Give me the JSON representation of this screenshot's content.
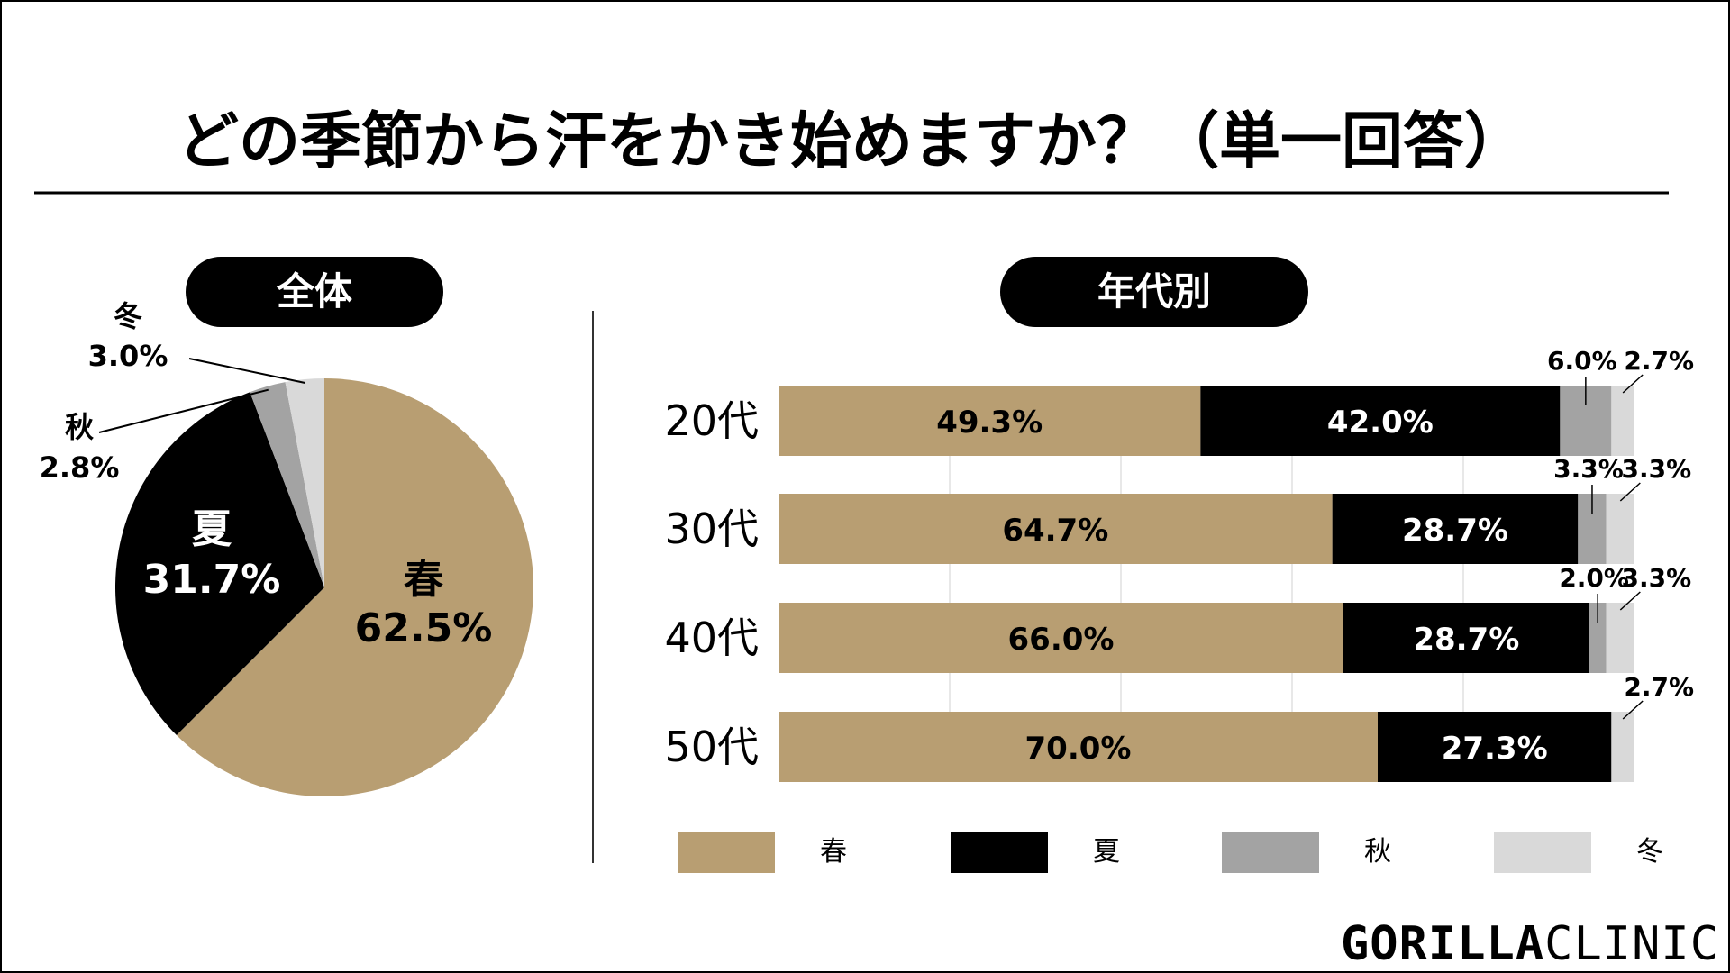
{
  "title": "どの季節から汗をかき始めますか？（単一回答）",
  "overall_label": "全体",
  "byage_label": "年代別",
  "brand": {
    "bold": "GORILLA",
    "light": "CLINIC"
  },
  "colors": {
    "spring": "#b89e72",
    "summer": "#000000",
    "autumn": "#a3a3a3",
    "winter": "#d9d9d9"
  },
  "chart_data": [
    {
      "type": "pie",
      "title": "全体",
      "slices": [
        {
          "label": "春",
          "value": 62.5,
          "value_label": "62.5%"
        },
        {
          "label": "夏",
          "value": 31.7,
          "value_label": "31.7%"
        },
        {
          "label": "秋",
          "value": 2.8,
          "value_label": "2.8%"
        },
        {
          "label": "冬",
          "value": 3.0,
          "value_label": "3.0%"
        }
      ]
    },
    {
      "type": "bar",
      "orientation": "horizontal",
      "stacked": true,
      "title": "年代別",
      "categories": [
        "20代",
        "30代",
        "40代",
        "50代"
      ],
      "xlim": [
        0,
        100
      ],
      "legend": "bottom",
      "series": [
        {
          "name": "春",
          "values": [
            49.3,
            64.7,
            66.0,
            70.0
          ],
          "labels": [
            "49.3%",
            "64.7%",
            "66.0%",
            "70.0%"
          ]
        },
        {
          "name": "夏",
          "values": [
            42.0,
            28.7,
            28.7,
            27.3
          ],
          "labels": [
            "42.0%",
            "28.7%",
            "28.7%",
            "27.3%"
          ]
        },
        {
          "name": "秋",
          "values": [
            6.0,
            3.3,
            2.0,
            0
          ],
          "labels": [
            "6.0%",
            "3.3%",
            "2.0%",
            ""
          ]
        },
        {
          "name": "冬",
          "values": [
            2.7,
            3.3,
            3.3,
            2.7
          ],
          "labels": [
            "2.7%",
            "3.3%",
            "3.3%",
            "2.7%"
          ]
        }
      ]
    }
  ]
}
